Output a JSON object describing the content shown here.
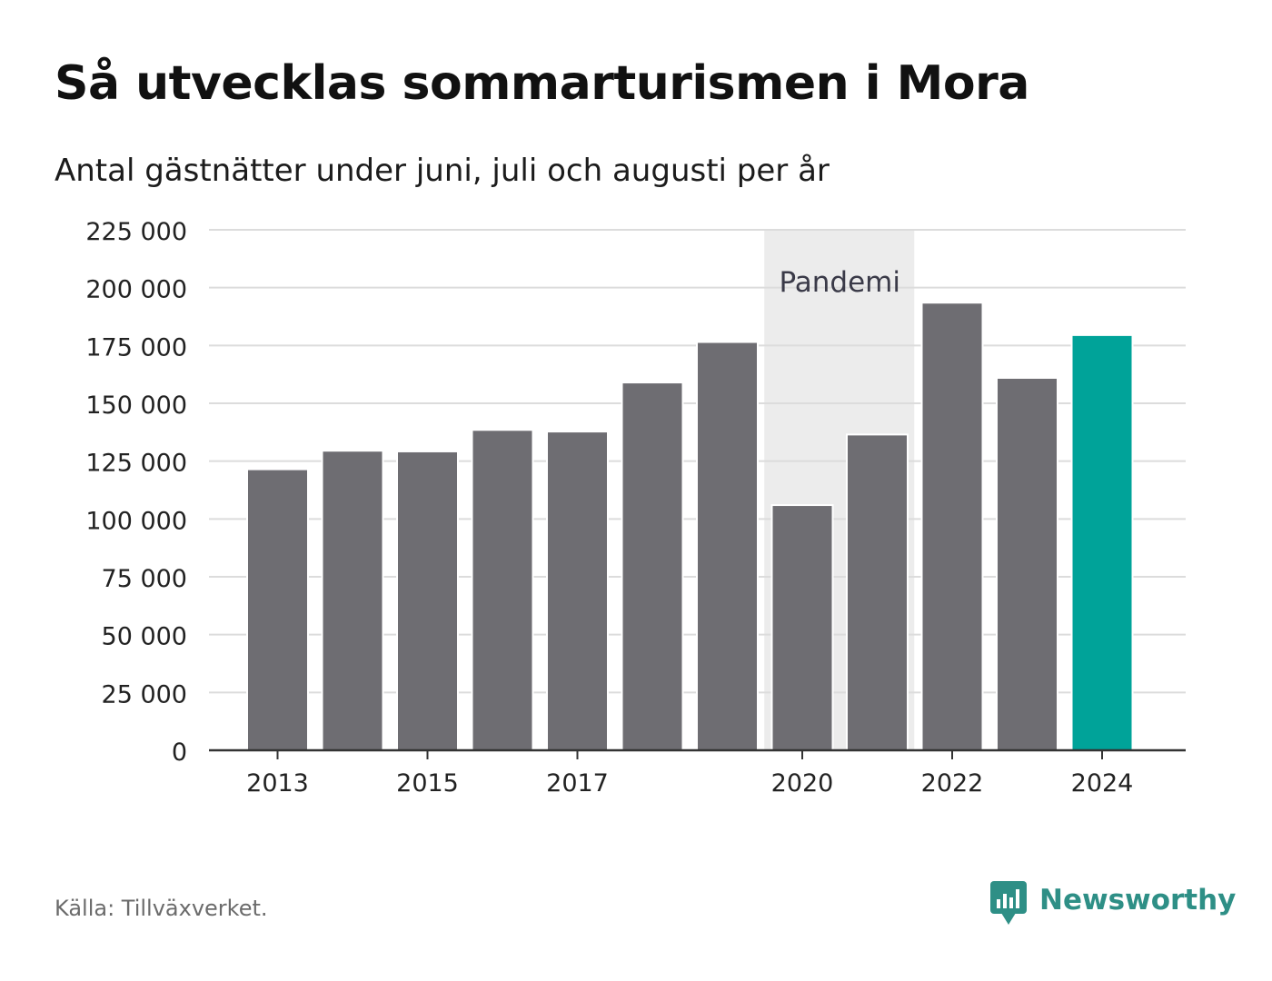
{
  "title": "Så utvecklas sommarturismen i Mora",
  "subtitle": "Antal gästnätter under juni, juli och augusti per år",
  "source": "Källa: Tillväxverket.",
  "brand": {
    "name": "Newsworthy",
    "icon": "newsworthy-logo-icon"
  },
  "colors": {
    "bar": "#6e6d72",
    "highlight": "#00a399",
    "shade": "#ececec",
    "grid": "#dcdcdc",
    "axis": "#333333",
    "brand": "#2e8f86"
  },
  "chart_data": {
    "type": "bar",
    "categories": [
      "2013",
      "2014",
      "2015",
      "2016",
      "2017",
      "2018",
      "2019",
      "2020",
      "2021",
      "2022",
      "2023",
      "2024"
    ],
    "values": [
      121500,
      129500,
      129200,
      138500,
      137800,
      159000,
      176500,
      106000,
      136500,
      193500,
      161000,
      179500
    ],
    "highlight_category": "2024",
    "x_tick_labels": [
      "2013",
      "2015",
      "2017",
      "2020",
      "2022",
      "2024"
    ],
    "y_ticks": [
      0,
      25000,
      50000,
      75000,
      100000,
      125000,
      150000,
      175000,
      200000,
      225000
    ],
    "y_tick_labels": [
      "0",
      "25 000",
      "50 000",
      "75 000",
      "100 000",
      "125 000",
      "150 000",
      "175 000",
      "200 000",
      "225 000"
    ],
    "ylim": [
      0,
      225000
    ],
    "grid": true,
    "xlabel": "",
    "ylabel": "",
    "annotation": {
      "label": "Pandemi",
      "from": "2020",
      "to": "2021"
    }
  }
}
